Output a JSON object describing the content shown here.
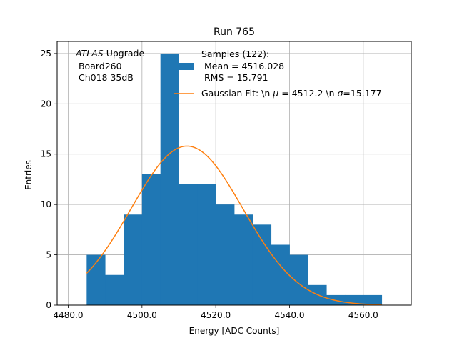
{
  "chart_data": {
    "type": "bar",
    "title": "Run 765",
    "xlabel": "Energy [ADC Counts]",
    "ylabel": "Entries",
    "xlim": [
      4477,
      4573
    ],
    "ylim": [
      0,
      26.2
    ],
    "grid": true,
    "x_ticks": [
      4480,
      4500,
      4520,
      4540,
      4560
    ],
    "x_tick_labels": [
      "4480.0",
      "4500.0",
      "4520.0",
      "4540.0",
      "4560.0"
    ],
    "y_ticks": [
      0,
      5,
      10,
      15,
      20,
      25
    ],
    "y_tick_labels": [
      "0",
      "5",
      "10",
      "15",
      "20",
      "25"
    ],
    "histogram": {
      "bin_edges": [
        4485,
        4490,
        4495,
        4500,
        4505,
        4510,
        4515,
        4520,
        4525,
        4530,
        4535,
        4540,
        4545,
        4550,
        4555,
        4560,
        4565
      ],
      "counts": [
        5,
        3,
        9,
        13,
        25,
        12,
        12,
        10,
        9,
        8,
        6,
        5,
        2,
        1,
        1,
        1
      ],
      "color": "#1f77b4"
    },
    "fit": {
      "type": "gaussian",
      "amplitude": 15.8,
      "mu": 4512.2,
      "sigma": 15.177,
      "x_range": [
        4485,
        4565
      ],
      "color": "#ff7f0e"
    },
    "annotation_lines": [
      "ATLAS Upgrade",
      " Board260",
      " Ch018 35dB"
    ],
    "annotation_italic_word": "ATLAS",
    "annotation_rest_first_line": " Upgrade",
    "legend": {
      "placement": "top-right",
      "samples_lines": [
        "Samples (122):",
        " Mean = 4516.028",
        " RMS = 15.791"
      ],
      "fit_label_prefix": "Gaussian Fit: \\n ",
      "fit_mu_symbol": "μ",
      "fit_mu_value": " = 4512.2 \\n ",
      "fit_sigma_symbol": "σ",
      "fit_sigma_value": "=15.177"
    }
  }
}
